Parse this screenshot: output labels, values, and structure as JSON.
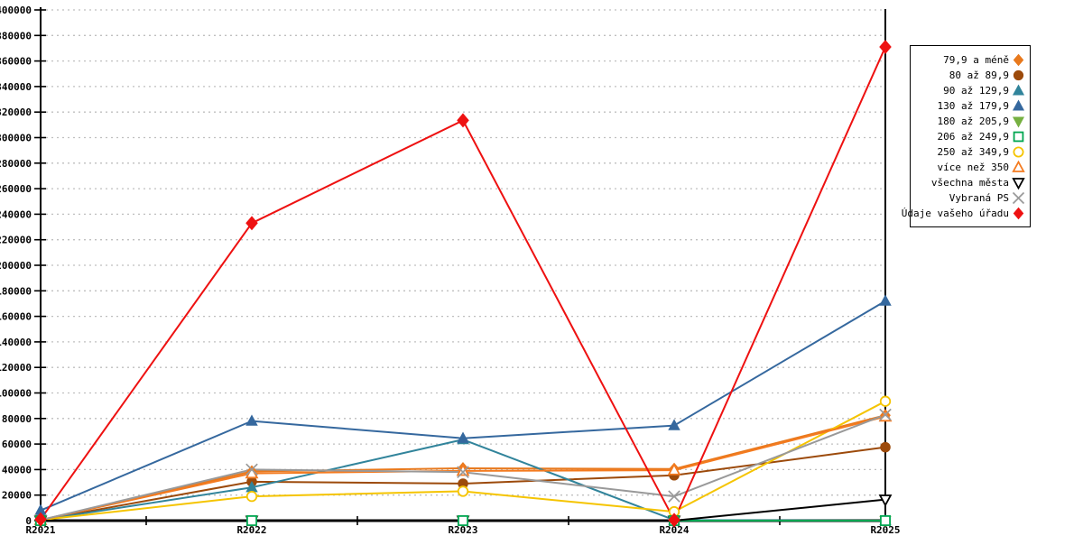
{
  "chart_data": {
    "type": "line",
    "title": "",
    "xlabel": "",
    "ylabel": "",
    "categories": [
      "R2021",
      "R2022",
      "R2023",
      "R2024",
      "R2025"
    ],
    "ylim": [
      0,
      400000
    ],
    "ytick_step": 20000,
    "grid": "horizontal-dashed",
    "legend_position": "right",
    "series": [
      {
        "name": "79,9 a méně",
        "color": "#E8791D",
        "marker": "diamond",
        "fill": "solid",
        "values": [
          500,
          38500,
          41000,
          40500,
          82500
        ]
      },
      {
        "name": "80 až 89,9",
        "color": "#9C4A0B",
        "marker": "circle",
        "fill": "solid",
        "values": [
          500,
          30500,
          29000,
          35500,
          57500
        ]
      },
      {
        "name": "90 až 129,9",
        "color": "#31849B",
        "marker": "triangle-up",
        "fill": "solid",
        "values": [
          500,
          26000,
          63500,
          500,
          0
        ]
      },
      {
        "name": "130 až 179,9",
        "color": "#35689E",
        "marker": "triangle-up",
        "fill": "solid",
        "values": [
          8000,
          78000,
          64500,
          74500,
          172000
        ]
      },
      {
        "name": "180 až 205,9",
        "color": "#76B041",
        "marker": "triangle-down",
        "fill": "solid",
        "values": [
          0,
          0,
          0,
          0,
          0
        ]
      },
      {
        "name": "206 až 249,9",
        "color": "#00A651",
        "marker": "square",
        "fill": "open",
        "values": [
          0,
          0,
          0,
          0,
          0
        ]
      },
      {
        "name": "250 až 349,9",
        "color": "#F5C400",
        "marker": "circle",
        "fill": "open",
        "values": [
          500,
          19000,
          23000,
          7000,
          93500
        ]
      },
      {
        "name": "více než 350",
        "color": "#F47B20",
        "marker": "triangle-up",
        "fill": "open",
        "values": [
          500,
          37000,
          39000,
          39500,
          81500
        ]
      },
      {
        "name": "všechna města",
        "color": "#000000",
        "marker": "triangle-down",
        "fill": "open",
        "values": [
          0,
          0,
          0,
          0,
          16500
        ]
      },
      {
        "name": "Vybraná PS",
        "color": "#999999",
        "marker": "x",
        "fill": "line",
        "values": [
          500,
          40000,
          38000,
          19000,
          83000
        ]
      },
      {
        "name": "Údaje vašeho úřadu",
        "color": "#EE1111",
        "marker": "diamond",
        "fill": "solid",
        "values": [
          1000,
          233000,
          313500,
          500,
          371000
        ]
      }
    ]
  },
  "colors": {
    "background": "#FFFFFF",
    "gridline": "#BFBFBF",
    "axis": "#000000",
    "legend_border": "#000000",
    "tick_label": "#000000"
  }
}
